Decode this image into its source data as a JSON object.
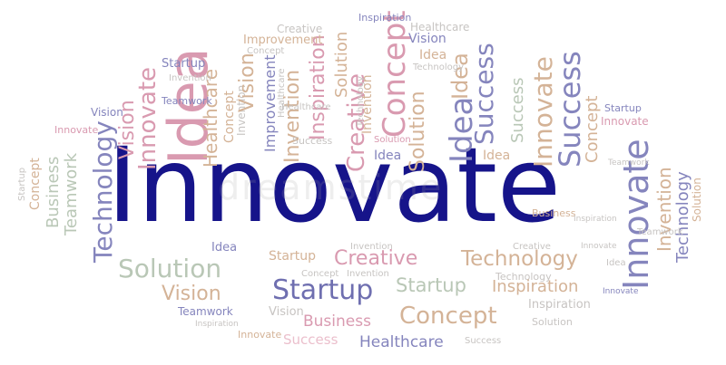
{
  "title": "Innovate",
  "colors": {
    "navy": "#16148a",
    "pink": "#d99ab0",
    "light_pink": "#ebbfcc",
    "purple": "#8585bd",
    "dark_purple": "#6f6fb0",
    "sage": "#b9c7b6",
    "tan": "#d4b397",
    "grey": "#c7c4c2"
  },
  "words": [
    "Innovate",
    "Idea",
    "Creative",
    "Technology",
    "Solution",
    "Startup",
    "Concept",
    "Vision",
    "Business",
    "Healthcare",
    "Success",
    "Inspiration",
    "Teamwork",
    "Improvement",
    "Invention"
  ],
  "watermark": "dreamstime"
}
